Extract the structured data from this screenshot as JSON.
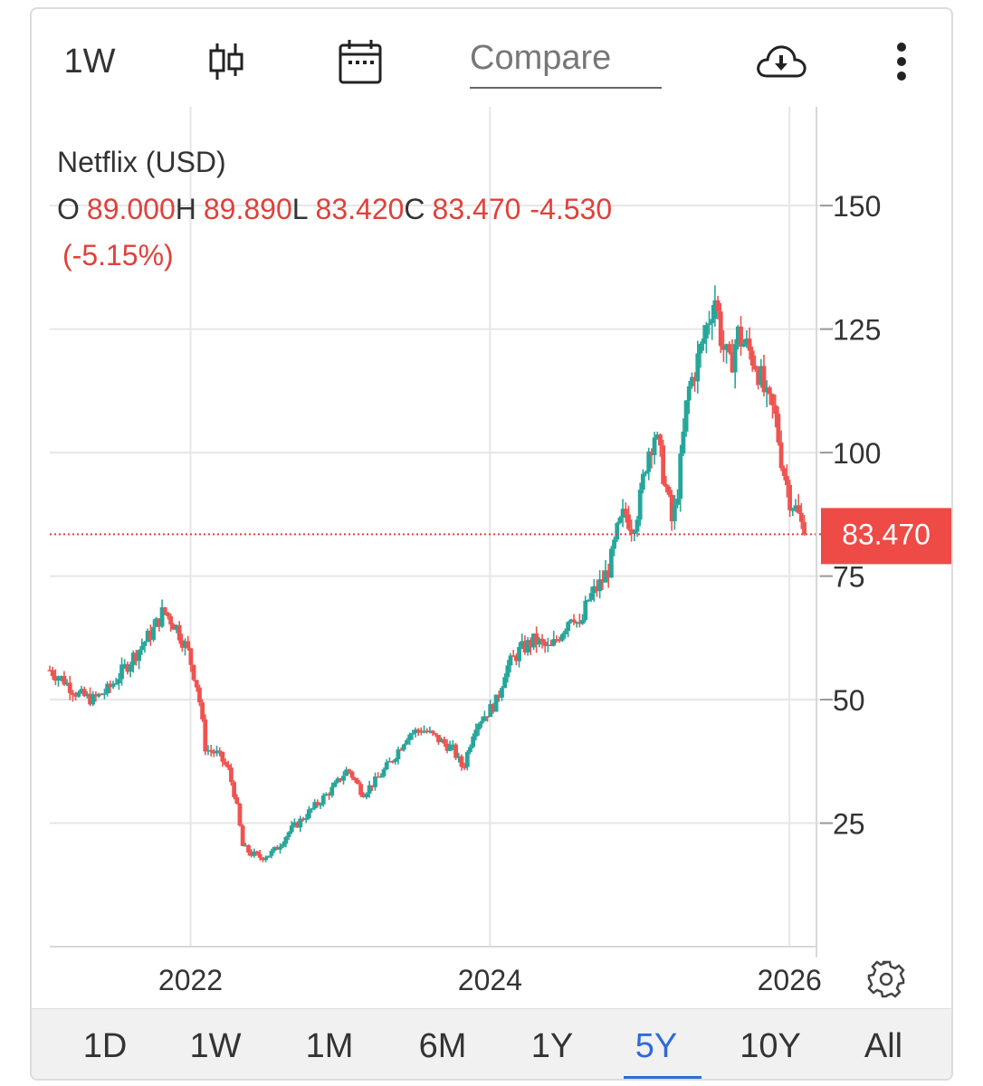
{
  "toolbar": {
    "interval": "1W",
    "compare_placeholder": "Compare",
    "icons": [
      "candlestick-icon",
      "calendar-icon",
      "cloud-download-icon",
      "more-vertical-icon"
    ]
  },
  "legend": {
    "symbol": "Netflix (USD)",
    "o_label": "O",
    "o_value": "89.000",
    "h_label": "H",
    "h_value": "89.890",
    "l_label": "L",
    "l_value": "83.420",
    "c_label": "C",
    "c_value": "83.470",
    "change": "-4.530",
    "change_pct": "(-5.15%)"
  },
  "price_tag": "83.470",
  "ranges": [
    "1D",
    "1W",
    "1M",
    "6M",
    "1Y",
    "5Y",
    "10Y",
    "All"
  ],
  "active_range": "5Y",
  "colors": {
    "up": "#26a69a",
    "down": "#ef5350",
    "accent": "#2e6bd9",
    "grid": "#e6e6e6"
  },
  "chart_data": {
    "type": "candlestick",
    "title": "Netflix (USD)",
    "interval": "1W",
    "span": "5Y",
    "current_price": 83.47,
    "ylim": [
      0,
      170
    ],
    "yticks": [
      25,
      50,
      75,
      100,
      125,
      150
    ],
    "xlim": [
      2021.06,
      2026.18
    ],
    "xticks": [
      2022,
      2024,
      2026
    ],
    "xtick_labels": [
      "2022",
      "2024",
      "2026"
    ],
    "close_path": [
      [
        2021.06,
        56
      ],
      [
        2021.15,
        54
      ],
      [
        2021.25,
        51
      ],
      [
        2021.35,
        50
      ],
      [
        2021.45,
        52
      ],
      [
        2021.55,
        56
      ],
      [
        2021.65,
        60
      ],
      [
        2021.75,
        64
      ],
      [
        2021.82,
        68
      ],
      [
        2021.9,
        65
      ],
      [
        2021.98,
        60
      ],
      [
        2022.05,
        52
      ],
      [
        2022.1,
        40
      ],
      [
        2022.18,
        39
      ],
      [
        2022.25,
        36
      ],
      [
        2022.3,
        30
      ],
      [
        2022.35,
        20
      ],
      [
        2022.45,
        18
      ],
      [
        2022.55,
        19
      ],
      [
        2022.65,
        23
      ],
      [
        2022.75,
        26
      ],
      [
        2022.85,
        29
      ],
      [
        2022.95,
        32
      ],
      [
        2023.05,
        36
      ],
      [
        2023.15,
        31
      ],
      [
        2023.25,
        34
      ],
      [
        2023.35,
        38
      ],
      [
        2023.45,
        43
      ],
      [
        2023.55,
        44
      ],
      [
        2023.65,
        42
      ],
      [
        2023.75,
        40
      ],
      [
        2023.82,
        36
      ],
      [
        2023.9,
        45
      ],
      [
        2024.0,
        48
      ],
      [
        2024.05,
        50
      ],
      [
        2024.1,
        56
      ],
      [
        2024.2,
        60
      ],
      [
        2024.3,
        62
      ],
      [
        2024.4,
        60
      ],
      [
        2024.5,
        65
      ],
      [
        2024.55,
        68
      ],
      [
        2024.6,
        64
      ],
      [
        2024.65,
        70
      ],
      [
        2024.75,
        74
      ],
      [
        2024.8,
        77
      ],
      [
        2024.85,
        84
      ],
      [
        2024.9,
        88
      ],
      [
        2024.95,
        85
      ],
      [
        2025.0,
        90
      ],
      [
        2025.05,
        100
      ],
      [
        2025.1,
        104
      ],
      [
        2025.15,
        97
      ],
      [
        2025.22,
        85
      ],
      [
        2025.27,
        97
      ],
      [
        2025.32,
        112
      ],
      [
        2025.4,
        120
      ],
      [
        2025.45,
        126
      ],
      [
        2025.5,
        132
      ],
      [
        2025.55,
        122
      ],
      [
        2025.6,
        117
      ],
      [
        2025.65,
        124
      ],
      [
        2025.72,
        121
      ],
      [
        2025.78,
        118
      ],
      [
        2025.85,
        110
      ],
      [
        2025.9,
        108
      ],
      [
        2025.95,
        98
      ],
      [
        2026.0,
        91
      ],
      [
        2026.05,
        88
      ],
      [
        2026.1,
        83.47
      ]
    ]
  }
}
